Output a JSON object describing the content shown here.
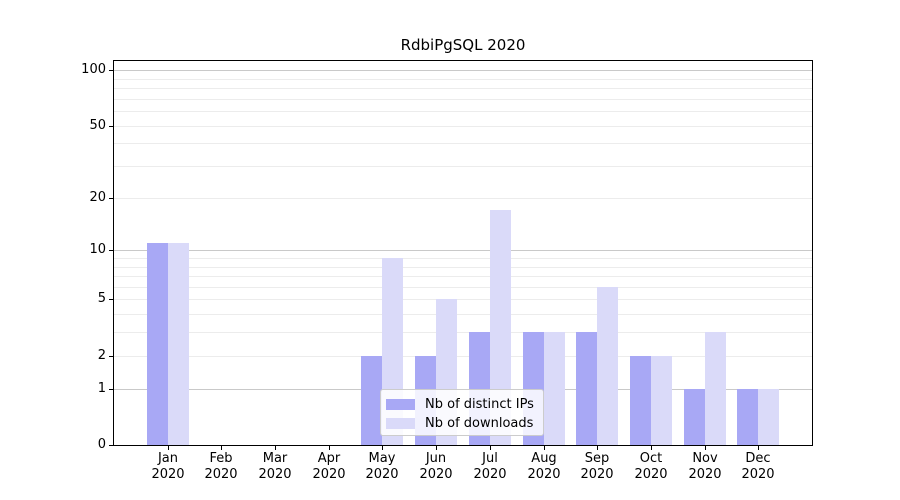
{
  "title": "RdbiPgSQL 2020",
  "chart_data": {
    "type": "bar",
    "title": "RdbiPgSQL 2020",
    "categories": [
      "Jan 2020",
      "Feb 2020",
      "Mar 2020",
      "Apr 2020",
      "May 2020",
      "Jun 2020",
      "Jul 2020",
      "Aug 2020",
      "Sep 2020",
      "Oct 2020",
      "Nov 2020",
      "Dec 2020"
    ],
    "x_tick_labels": [
      {
        "line1": "Jan",
        "line2": "2020"
      },
      {
        "line1": "Feb",
        "line2": "2020"
      },
      {
        "line1": "Mar",
        "line2": "2020"
      },
      {
        "line1": "Apr",
        "line2": "2020"
      },
      {
        "line1": "May",
        "line2": "2020"
      },
      {
        "line1": "Jun",
        "line2": "2020"
      },
      {
        "line1": "Jul",
        "line2": "2020"
      },
      {
        "line1": "Aug",
        "line2": "2020"
      },
      {
        "line1": "Sep",
        "line2": "2020"
      },
      {
        "line1": "Oct",
        "line2": "2020"
      },
      {
        "line1": "Nov",
        "line2": "2020"
      },
      {
        "line1": "Dec",
        "line2": "2020"
      }
    ],
    "series": [
      {
        "name": "Nb of distinct IPs",
        "color": "#a8a8f5",
        "values": [
          11,
          0,
          0,
          0,
          2,
          2,
          3,
          3,
          3,
          2,
          1,
          1
        ]
      },
      {
        "name": "Nb of downloads",
        "color": "#dadaf9",
        "values": [
          11,
          0,
          0,
          0,
          9,
          5,
          17,
          3,
          6,
          2,
          3,
          1
        ]
      }
    ],
    "xlabel": "",
    "ylabel": "",
    "y_scale": "log1p",
    "y_ticks": [
      0,
      1,
      2,
      5,
      10,
      20,
      50,
      100
    ],
    "y_minor_gridlines": [
      2,
      3,
      4,
      5,
      6,
      7,
      8,
      9,
      20,
      30,
      40,
      50,
      60,
      70,
      80,
      90
    ],
    "y_major_gridlines": [
      1,
      10,
      100
    ],
    "ylim": [
      0,
      112
    ],
    "grid": true,
    "legend_position": "lower center"
  },
  "colors": {
    "bar_distinct_ips": "#a8a8f5",
    "bar_downloads": "#dadaf9",
    "grid_major": "#c9c9c9",
    "grid_minor": "#ececec",
    "axis": "#000000",
    "legend_border": "#cccccc"
  }
}
